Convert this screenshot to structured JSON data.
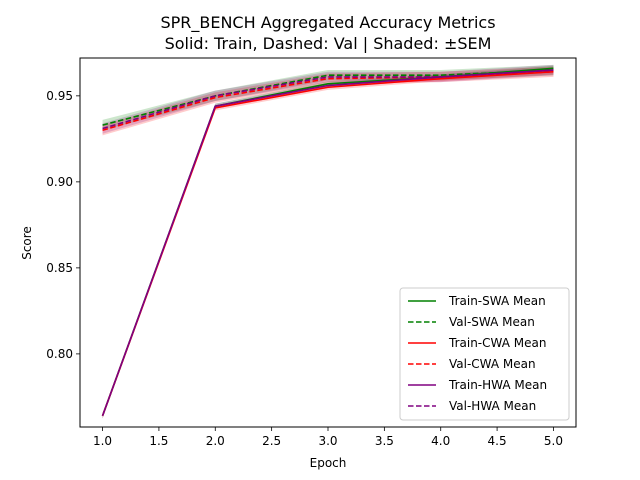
{
  "chart_data": {
    "type": "line",
    "title": "SPR_BENCH Aggregated Accuracy Metrics",
    "subtitle": "Solid: Train, Dashed: Val | Shaded: ±SEM",
    "xlabel": "Epoch",
    "ylabel": "Score",
    "xlim": [
      0.8,
      5.2
    ],
    "ylim": [
      0.7575,
      0.972
    ],
    "xticks": [
      1.0,
      1.5,
      2.0,
      2.5,
      3.0,
      3.5,
      4.0,
      4.5,
      5.0
    ],
    "xtick_labels": [
      "1.0",
      "1.5",
      "2.0",
      "2.5",
      "3.0",
      "3.5",
      "4.0",
      "4.5",
      "5.0"
    ],
    "yticks": [
      0.8,
      0.85,
      0.9,
      0.95
    ],
    "ytick_labels": [
      "0.80",
      "0.85",
      "0.90",
      "0.95"
    ],
    "grid": false,
    "legend_position": "lower-right",
    "x": [
      1,
      2,
      3,
      4,
      5
    ],
    "series": [
      {
        "name": "Train-SWA Mean",
        "color": "#008000",
        "dash": false,
        "values": [
          0.764,
          0.944,
          0.957,
          0.961,
          0.966
        ],
        "sem": 0.0015
      },
      {
        "name": "Val-SWA Mean",
        "color": "#008000",
        "dash": true,
        "values": [
          0.933,
          0.95,
          0.962,
          0.962,
          0.965
        ],
        "sem": 0.003
      },
      {
        "name": "Train-CWA Mean",
        "color": "#ff0000",
        "dash": false,
        "values": [
          0.764,
          0.943,
          0.955,
          0.96,
          0.964
        ],
        "sem": 0.0015
      },
      {
        "name": "Val-CWA Mean",
        "color": "#ff0000",
        "dash": true,
        "values": [
          0.93,
          0.949,
          0.96,
          0.961,
          0.964
        ],
        "sem": 0.003
      },
      {
        "name": "Train-HWA Mean",
        "color": "#800080",
        "dash": false,
        "values": [
          0.764,
          0.944,
          0.956,
          0.961,
          0.965
        ],
        "sem": 0.0015
      },
      {
        "name": "Val-HWA Mean",
        "color": "#800080",
        "dash": true,
        "values": [
          0.931,
          0.95,
          0.961,
          0.961,
          0.965
        ],
        "sem": 0.003
      }
    ]
  }
}
